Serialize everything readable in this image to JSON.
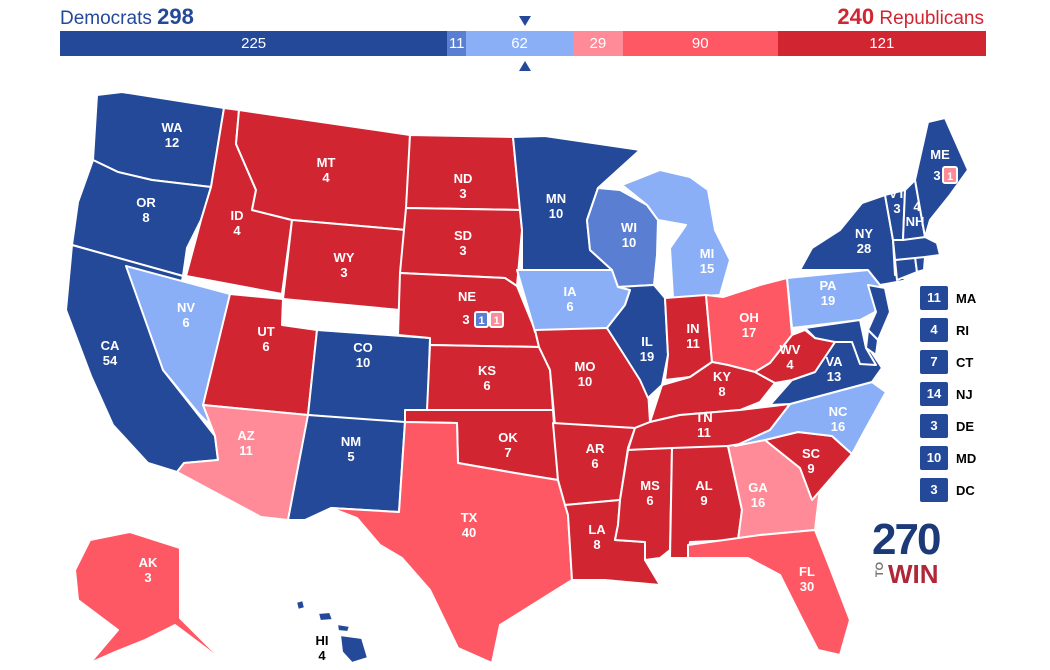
{
  "colors": {
    "safe_dem": "#244999",
    "likely_dem": "#5a7ed1",
    "lean_dem": "#8aaff7",
    "lean_rep": "#ff8b98",
    "likely_rep": "#ff5865",
    "safe_rep": "#d22532",
    "background": "#ffffff"
  },
  "header": {
    "dem_name": "Democrats",
    "dem_total": "298",
    "rep_total": "240",
    "rep_name": "Republicans"
  },
  "bar": {
    "segments": [
      {
        "value": 225,
        "label": "225",
        "category": "safe_dem"
      },
      {
        "value": 11,
        "label": "11",
        "category": "likely_dem"
      },
      {
        "value": 62,
        "label": "62",
        "category": "lean_dem"
      },
      {
        "value": 29,
        "label": "29",
        "category": "lean_rep"
      },
      {
        "value": 90,
        "label": "90",
        "category": "likely_rep"
      },
      {
        "value": 121,
        "label": "121",
        "category": "safe_rep"
      }
    ],
    "threshold": 270,
    "total": 538
  },
  "states": [
    {
      "abbr": "WA",
      "ev": "12",
      "category": "safe_dem"
    },
    {
      "abbr": "OR",
      "ev": "8",
      "category": "safe_dem"
    },
    {
      "abbr": "CA",
      "ev": "54",
      "category": "safe_dem"
    },
    {
      "abbr": "NV",
      "ev": "6",
      "category": "lean_dem"
    },
    {
      "abbr": "ID",
      "ev": "4",
      "category": "safe_rep"
    },
    {
      "abbr": "MT",
      "ev": "4",
      "category": "safe_rep"
    },
    {
      "abbr": "WY",
      "ev": "3",
      "category": "safe_rep"
    },
    {
      "abbr": "UT",
      "ev": "6",
      "category": "safe_rep"
    },
    {
      "abbr": "AZ",
      "ev": "11",
      "category": "lean_rep"
    },
    {
      "abbr": "CO",
      "ev": "10",
      "category": "safe_dem"
    },
    {
      "abbr": "NM",
      "ev": "5",
      "category": "safe_dem"
    },
    {
      "abbr": "ND",
      "ev": "3",
      "category": "safe_rep"
    },
    {
      "abbr": "SD",
      "ev": "3",
      "category": "safe_rep"
    },
    {
      "abbr": "NE",
      "ev": "3",
      "category": "safe_rep"
    },
    {
      "abbr": "KS",
      "ev": "6",
      "category": "safe_rep"
    },
    {
      "abbr": "OK",
      "ev": "7",
      "category": "safe_rep"
    },
    {
      "abbr": "TX",
      "ev": "40",
      "category": "likely_rep"
    },
    {
      "abbr": "MN",
      "ev": "10",
      "category": "safe_dem"
    },
    {
      "abbr": "IA",
      "ev": "6",
      "category": "lean_dem"
    },
    {
      "abbr": "MO",
      "ev": "10",
      "category": "safe_rep"
    },
    {
      "abbr": "AR",
      "ev": "6",
      "category": "safe_rep"
    },
    {
      "abbr": "LA",
      "ev": "8",
      "category": "safe_rep"
    },
    {
      "abbr": "WI",
      "ev": "10",
      "category": "likely_dem"
    },
    {
      "abbr": "IL",
      "ev": "19",
      "category": "safe_dem"
    },
    {
      "abbr": "MI",
      "ev": "15",
      "category": "lean_dem"
    },
    {
      "abbr": "IN",
      "ev": "11",
      "category": "safe_rep"
    },
    {
      "abbr": "OH",
      "ev": "17",
      "category": "likely_rep"
    },
    {
      "abbr": "KY",
      "ev": "8",
      "category": "safe_rep"
    },
    {
      "abbr": "TN",
      "ev": "11",
      "category": "safe_rep"
    },
    {
      "abbr": "MS",
      "ev": "6",
      "category": "safe_rep"
    },
    {
      "abbr": "AL",
      "ev": "9",
      "category": "safe_rep"
    },
    {
      "abbr": "GA",
      "ev": "16",
      "category": "lean_rep"
    },
    {
      "abbr": "FL",
      "ev": "30",
      "category": "likely_rep"
    },
    {
      "abbr": "SC",
      "ev": "9",
      "category": "safe_rep"
    },
    {
      "abbr": "NC",
      "ev": "16",
      "category": "lean_dem"
    },
    {
      "abbr": "VA",
      "ev": "13",
      "category": "safe_dem"
    },
    {
      "abbr": "WV",
      "ev": "4",
      "category": "safe_rep"
    },
    {
      "abbr": "PA",
      "ev": "19",
      "category": "lean_dem"
    },
    {
      "abbr": "NY",
      "ev": "28",
      "category": "safe_dem"
    },
    {
      "abbr": "VT",
      "ev": "3",
      "category": "safe_dem"
    },
    {
      "abbr": "NH",
      "ev": "4",
      "category": "safe_dem"
    },
    {
      "abbr": "ME",
      "ev": "3",
      "category": "safe_dem"
    },
    {
      "abbr": "AK",
      "ev": "3",
      "category": "likely_rep"
    },
    {
      "abbr": "HI",
      "ev": "4",
      "category": "safe_dem"
    }
  ],
  "districts": {
    "ne_d1": {
      "ev": "1",
      "category": "likely_dem"
    },
    "ne_d2": {
      "ev": "1",
      "category": "lean_rep"
    },
    "me_d2": {
      "ev": "1",
      "category": "lean_rep"
    }
  },
  "small_states": [
    {
      "abbr": "MA",
      "ev": "11",
      "category": "safe_dem"
    },
    {
      "abbr": "RI",
      "ev": "4",
      "category": "safe_dem"
    },
    {
      "abbr": "CT",
      "ev": "7",
      "category": "safe_dem"
    },
    {
      "abbr": "NJ",
      "ev": "14",
      "category": "safe_dem"
    },
    {
      "abbr": "DE",
      "ev": "3",
      "category": "safe_dem"
    },
    {
      "abbr": "MD",
      "ev": "10",
      "category": "safe_dem"
    },
    {
      "abbr": "DC",
      "ev": "3",
      "category": "safe_dem"
    }
  ],
  "logo": {
    "number": "270",
    "to": "TO",
    "win": "WIN"
  }
}
